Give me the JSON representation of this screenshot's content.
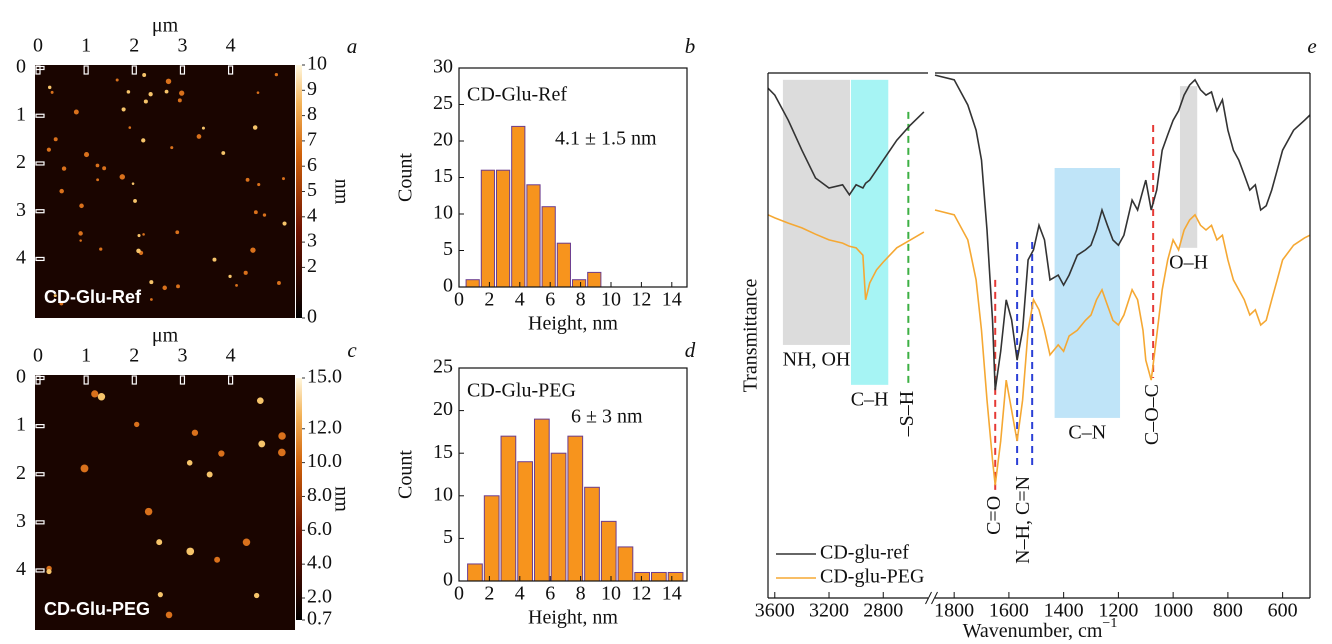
{
  "chart_data": [
    {
      "type": "image",
      "panel": "a",
      "label": "CD-Glu-Ref",
      "xlabel": "μm",
      "xlim": [
        0,
        5.4
      ],
      "ylim": [
        0,
        5.3
      ],
      "xticks": [
        0,
        1,
        2,
        3,
        4
      ],
      "yticks": [
        0,
        1,
        2,
        3,
        4
      ],
      "colorbar": {
        "label": "nm",
        "lim": [
          0,
          10
        ],
        "ticks": [
          0,
          2,
          3,
          4,
          5,
          6,
          7,
          8,
          9,
          10
        ]
      }
    },
    {
      "type": "histogram",
      "panel": "b",
      "label": "CD-Glu-Ref",
      "annotation": "4.1 ± 1.5 nm",
      "xlabel": "Height, nm",
      "ylabel": "Count",
      "bins": [
        0.4,
        1.4,
        2.4,
        3.4,
        4.4,
        5.4,
        6.4,
        7.4,
        8.4,
        9.4
      ],
      "values": [
        1,
        16,
        16,
        22,
        14,
        11,
        6,
        1,
        2
      ],
      "xlim": [
        0,
        15
      ],
      "ylim": [
        0,
        30
      ],
      "xticks": [
        0,
        2,
        4,
        6,
        8,
        10,
        12,
        14
      ],
      "yticks": [
        0,
        5,
        10,
        15,
        20,
        25,
        30
      ],
      "color": "#f7941d"
    },
    {
      "type": "image",
      "panel": "c",
      "label": "CD-Glu-PEG",
      "xlabel": "μm",
      "xlim": [
        0,
        5.4
      ],
      "ylim": [
        0,
        5.3
      ],
      "xticks": [
        0,
        1,
        2,
        3,
        4
      ],
      "yticks": [
        0,
        1,
        2,
        3,
        4
      ],
      "colorbar": {
        "label": "nm",
        "lim": [
          0.7,
          15
        ],
        "ticks": [
          0.7,
          {
            "value": 2,
            "label": "2.0"
          },
          {
            "value": 4,
            "label": "4.0"
          },
          {
            "value": 6,
            "label": "6.0"
          },
          {
            "value": 8,
            "label": "8.0"
          },
          {
            "value": 10,
            "label": "10.0"
          },
          {
            "value": 12,
            "label": "12.0"
          },
          {
            "value": 15,
            "label": "15.0"
          }
        ]
      }
    },
    {
      "type": "histogram",
      "panel": "d",
      "label": "CD-Glu-PEG",
      "annotation": "6 ± 3 nm",
      "xlabel": "Height, nm",
      "ylabel": "Count",
      "bins": [
        0.5,
        1.6,
        2.7,
        3.8,
        4.9,
        6,
        7.1,
        8.2,
        9.3,
        10.4,
        11.5,
        12.6,
        13.7,
        14.8
      ],
      "values": [
        2,
        10,
        17,
        14,
        19,
        15,
        17,
        11,
        7,
        4,
        1,
        1,
        1
      ],
      "xlim": [
        0,
        15
      ],
      "ylim": [
        0,
        25
      ],
      "xticks": [
        0,
        2,
        4,
        6,
        8,
        10,
        12,
        14
      ],
      "yticks": [
        0,
        5,
        10,
        15,
        20,
        25
      ],
      "color": "#f7941d"
    },
    {
      "type": "line",
      "panel": "e",
      "xlabel": "Wavenumber, cm",
      "xlabel_superscript": "−1",
      "ylabel": "Transmittance",
      "xlim": [
        [
          3650,
          2470
        ],
        [
          1870,
          500
        ]
      ],
      "ylim": [
        0,
        100
      ],
      "xticks": [
        3600,
        3200,
        2800,
        1800,
        1600,
        1400,
        1200,
        1000,
        800,
        600
      ],
      "legend": "lower left",
      "x": [
        3650,
        3600,
        3500,
        3400,
        3300,
        3200,
        3100,
        3050,
        3000,
        2950,
        2930,
        2900,
        2850,
        2800,
        2700,
        2600,
        2500,
        null,
        1870,
        1800,
        1750,
        1720,
        1700,
        1680,
        1660,
        1650,
        1630,
        1610,
        1590,
        1570,
        1550,
        1530,
        1510,
        1490,
        1470,
        1450,
        1420,
        1400,
        1380,
        1350,
        1320,
        1300,
        1280,
        1260,
        1240,
        1220,
        1200,
        1180,
        1150,
        1130,
        1110,
        1100,
        1080,
        1060,
        1040,
        1020,
        1000,
        980,
        960,
        940,
        920,
        900,
        880,
        860,
        840,
        820,
        800,
        780,
        760,
        740,
        720,
        700,
        680,
        660,
        640,
        620,
        600,
        560,
        520,
        500
      ],
      "series": [
        {
          "name": "CD-glu-ref",
          "color": "#333333",
          "values": [
            97.1,
            95.8,
            91.0,
            85.3,
            80.0,
            78.1,
            78.7,
            76.8,
            78.7,
            78.1,
            79.0,
            79.6,
            81.5,
            83.4,
            87.2,
            90.1,
            92.6,
            null,
            99.6,
            98.7,
            93.9,
            89.1,
            83.4,
            70.1,
            53.0,
            39.6,
            47.0,
            56.8,
            53.0,
            45.3,
            51.0,
            64.4,
            66.3,
            71.0,
            68.2,
            60.6,
            61.5,
            59.6,
            61.5,
            65.3,
            66.3,
            67.2,
            70.1,
            73.9,
            71.0,
            68.2,
            67.2,
            69.1,
            75.8,
            73.9,
            77.7,
            79.6,
            73.9,
            77.7,
            85.3,
            88.2,
            91.0,
            92.8,
            95.8,
            97.7,
            98.7,
            96.8,
            95.8,
            96.4,
            92.8,
            94.9,
            89.1,
            85.3,
            83.4,
            80.6,
            77.7,
            78.7,
            73.9,
            74.7,
            77.7,
            81.5,
            85.3,
            89.1,
            91.0,
            92.0
          ]
        },
        {
          "name": "CD-glu-PEG",
          "color": "#f5a833",
          "values": [
            73.0,
            72.4,
            71.4,
            70.5,
            69.3,
            68.2,
            67.6,
            67.0,
            66.7,
            65.3,
            56.8,
            60.0,
            62.5,
            64.0,
            66.7,
            68.2,
            69.7,
            null,
            73.9,
            73.0,
            68.2,
            60.6,
            51.0,
            37.7,
            26.3,
            21.5,
            29.9,
            41.5,
            35.8,
            29.9,
            37.7,
            51.0,
            56.8,
            54.9,
            51.0,
            46.3,
            48.2,
            47.0,
            49.9,
            51.0,
            52.9,
            53.9,
            56.8,
            58.7,
            55.8,
            52.9,
            52.0,
            53.9,
            58.7,
            56.8,
            51.0,
            45.3,
            41.5,
            49.9,
            58.7,
            64.4,
            68.2,
            66.3,
            70.1,
            72.0,
            73.0,
            71.0,
            70.1,
            71.0,
            68.2,
            69.1,
            64.4,
            60.6,
            58.7,
            56.8,
            53.9,
            54.9,
            52.0,
            52.9,
            56.8,
            60.6,
            64.4,
            67.2,
            68.6,
            69.1
          ]
        }
      ],
      "regions": [
        {
          "label": "NH, OH",
          "x": [
            3540,
            3045
          ],
          "y": [
            48.2,
            98.7
          ],
          "color": "#dcdcdc"
        },
        {
          "label": "C–H",
          "x": [
            3038,
            2763
          ],
          "y": [
            40.6,
            98.7
          ],
          "color": "#a6f4f4"
        },
        {
          "label": "C–N",
          "x": [
            1433,
            1194
          ],
          "y": [
            34.3,
            81.9
          ],
          "color": "#bfe4f8"
        },
        {
          "label": "O–H",
          "x": [
            975,
            912
          ],
          "y": [
            66.7,
            97.5
          ],
          "color": "#dcdcdc"
        }
      ],
      "markers": [
        {
          "label": "–S–H",
          "x": [
            2615
          ],
          "y": [
            40.6,
            92.6
          ],
          "color": "#3cb043"
        },
        {
          "label": "C=O",
          "x": [
            1650
          ],
          "y": [
            20.6,
            60.6
          ],
          "color": "#e53935"
        },
        {
          "label": "N–H, C=N",
          "x": [
            1570,
            1515
          ],
          "y": [
            24.4,
            67.8
          ],
          "color": "#2b3fd6"
        },
        {
          "label": "C–O–C",
          "x": [
            1073
          ],
          "y": [
            41.9,
            90.1
          ],
          "color": "#e53935"
        }
      ]
    }
  ]
}
